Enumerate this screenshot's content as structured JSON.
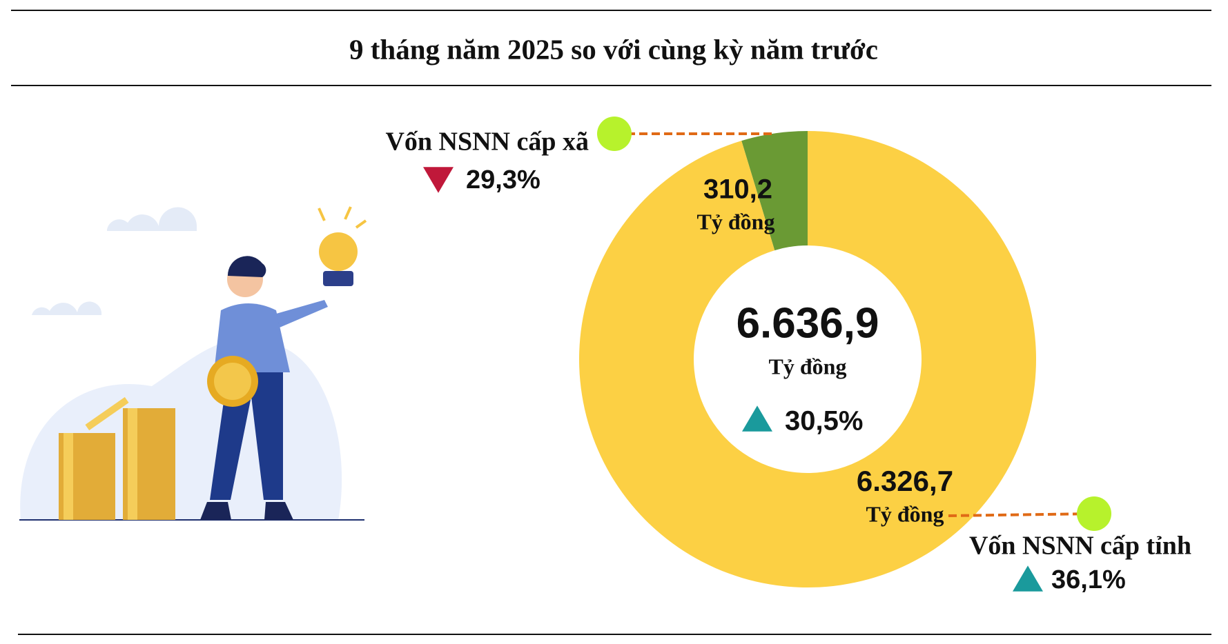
{
  "chart_data": {
    "type": "donut",
    "title": "9 tháng năm 2025 so với cùng kỳ năm trước",
    "categories": [
      "Vốn NSNN cấp xã",
      "Vốn NSNN cấp tỉnh"
    ],
    "values": [
      310.2,
      6326.7
    ],
    "value_labels": [
      "310,2",
      "6.326,7"
    ],
    "unit": "Tỷ đồng",
    "colors": [
      "#6a9a34",
      "#fcd044"
    ],
    "changes": [
      -29.3,
      36.1
    ],
    "change_labels": [
      "29,3%",
      "36,1%"
    ],
    "total": 6636.9,
    "total_label": "6.636,9",
    "total_change": 30.5,
    "total_change_label": "30,5%"
  }
}
